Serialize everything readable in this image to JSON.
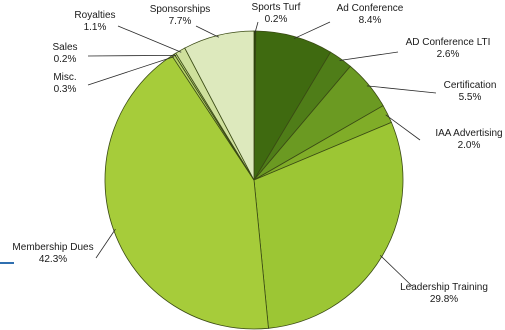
{
  "chart_data": {
    "type": "pie",
    "title": "",
    "slices": [
      {
        "label": "Sports Turf",
        "value": 0.2,
        "display": "0.2%",
        "color": "#1f3a06"
      },
      {
        "label": "Ad Conference",
        "value": 8.4,
        "display": "8.4%",
        "color": "#3f6a10"
      },
      {
        "label": "AD Conference LTI",
        "value": 2.6,
        "display": "2.6%",
        "color": "#4f7d18"
      },
      {
        "label": "Certification",
        "value": 5.5,
        "display": "5.5%",
        "color": "#6b9a22"
      },
      {
        "label": "IAA Advertising",
        "value": 2.0,
        "display": "2.0%",
        "color": "#80ad28"
      },
      {
        "label": "Leadership Training",
        "value": 29.8,
        "display": "29.8%",
        "color": "#9cc634"
      },
      {
        "label": "Membership Dues",
        "value": 42.3,
        "display": "42.3%",
        "color": "#a6cc3a"
      },
      {
        "label": "Misc.",
        "value": 0.3,
        "display": "0.3%",
        "color": "#b7d36a"
      },
      {
        "label": "Sales",
        "value": 0.2,
        "display": "0.2%",
        "color": "#c3da83"
      },
      {
        "label": "Royalties",
        "value": 1.1,
        "display": "1.1%",
        "color": "#cfe09c"
      },
      {
        "label": "Sponsorships",
        "value": 7.7,
        "display": "7.7%",
        "color": "#dde9bd"
      }
    ]
  }
}
